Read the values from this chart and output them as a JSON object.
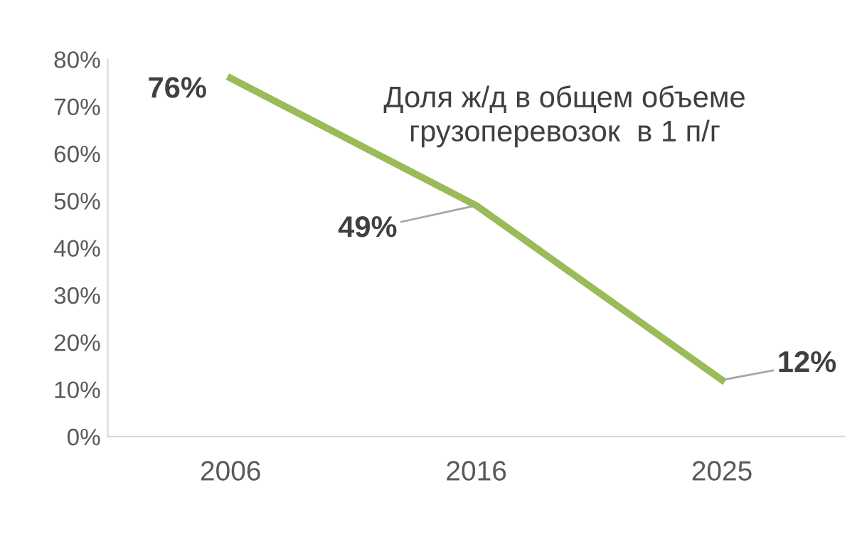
{
  "chart_data": {
    "type": "line",
    "title": "Доля ж/д в общем объеме\nгрузоперевозок  в 1 п/г",
    "categories": [
      "2006",
      "2016",
      "2025"
    ],
    "series": [
      {
        "color": "#9bbb59",
        "values": [
          76,
          49,
          12
        ]
      }
    ],
    "value_labels": [
      "76%",
      "49%",
      "12%"
    ],
    "ylim": [
      0,
      80
    ],
    "yticks": [
      {
        "value": 0,
        "label": "0%"
      },
      {
        "value": 10,
        "label": "10%"
      },
      {
        "value": 20,
        "label": "20%"
      },
      {
        "value": 30,
        "label": "30%"
      },
      {
        "value": 40,
        "label": "40%"
      },
      {
        "value": 50,
        "label": "50%"
      },
      {
        "value": 60,
        "label": "60%"
      },
      {
        "value": 70,
        "label": "70%"
      },
      {
        "value": 80,
        "label": "80%"
      }
    ],
    "grid": false,
    "legend": false,
    "marker": "none",
    "line_style": "solid"
  }
}
